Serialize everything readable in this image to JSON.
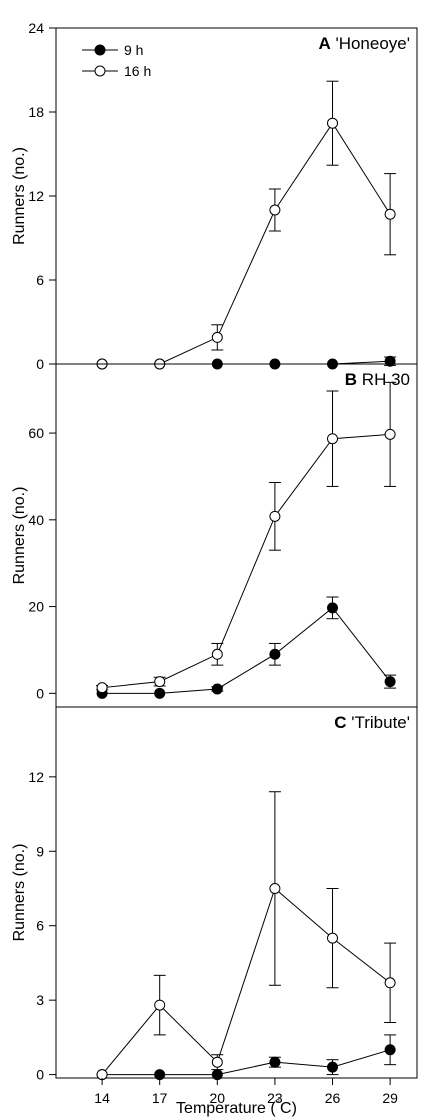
{
  "chart_data": {
    "type": "line",
    "x": [
      14,
      17,
      20,
      23,
      26,
      29
    ],
    "xlabel": "Temperature (°C)",
    "legend": {
      "placement": "top-left",
      "entries": [
        "9 h",
        "16 h"
      ]
    },
    "panels": [
      {
        "letter": "A",
        "name": "'Honeoye'",
        "ylabel": "Runners (no.)",
        "ylim": [
          0,
          24
        ],
        "yticks": [
          0,
          6,
          12,
          18,
          24
        ],
        "series": [
          {
            "name": "9 h",
            "marker": "filled",
            "values": [
              0,
              0,
              0,
              0,
              0,
              0.2
            ],
            "errors": [
              0,
              0,
              0,
              0,
              0,
              0.3
            ]
          },
          {
            "name": "16 h",
            "marker": "open",
            "values": [
              0,
              0,
              1.9,
              11,
              17.2,
              10.7
            ],
            "errors": [
              0,
              0,
              0.9,
              1.5,
              3.0,
              2.9
            ]
          }
        ]
      },
      {
        "letter": "B",
        "name": "RH 30",
        "ylabel": "Runners (no.)",
        "ylim": [
          -2,
          75
        ],
        "yticks": [
          0,
          20,
          40,
          60
        ],
        "series": [
          {
            "name": "9 h",
            "marker": "filled",
            "values": [
              0,
              0,
              1,
              9,
              19.7,
              2.7
            ],
            "errors": [
              0,
              0,
              0.5,
              2.5,
              2.5,
              1.5
            ]
          },
          {
            "name": "16 h",
            "marker": "open",
            "values": [
              1.3,
              2.7,
              9,
              40.8,
              58.7,
              59.7
            ],
            "errors": [
              0.5,
              1.0,
              2.5,
              7.8,
              11.0,
              12.0
            ]
          }
        ]
      },
      {
        "letter": "C",
        "name": "'Tribute'",
        "ylabel": "Runners (no.)",
        "ylim": [
          -0.5,
          15.5
        ],
        "yticks": [
          0,
          3,
          6,
          9,
          12
        ],
        "series": [
          {
            "name": "9 h",
            "marker": "filled",
            "values": [
              0,
              0,
              0,
              0.5,
              0.3,
              1
            ],
            "errors": [
              0,
              0,
              0,
              0.2,
              0.3,
              0.6
            ]
          },
          {
            "name": "16 h",
            "marker": "open",
            "values": [
              0,
              2.8,
              0.5,
              7.5,
              5.5,
              3.7
            ],
            "errors": [
              0,
              1.2,
              0.3,
              3.9,
              2.0,
              1.6
            ]
          }
        ]
      }
    ]
  }
}
